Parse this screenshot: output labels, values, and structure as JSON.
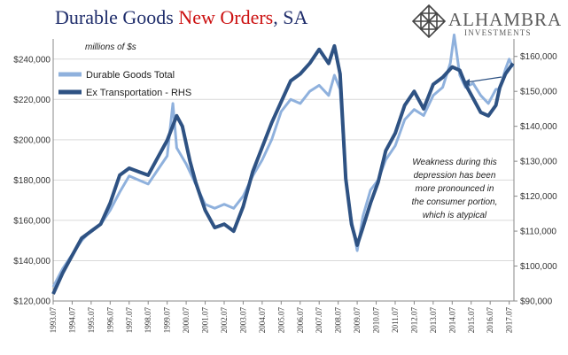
{
  "header": {
    "title_part1": "Durable Goods ",
    "title_highlight": "New Orders",
    "title_part2": ", SA"
  },
  "logo": {
    "name": "ALHAMBRA",
    "sub": "INVESTMENTS",
    "icon": "diamond-lattice-icon"
  },
  "colors": {
    "total": "#8fb1dd",
    "ex_transport": "#2e5283",
    "title_blue": "#1f2d6b",
    "title_red": "#cc1111"
  },
  "chart_data": {
    "type": "line",
    "title": "Durable Goods New Orders, SA",
    "units_label": "millions of $s",
    "annotation": [
      "Weakness during this",
      "depression has been",
      "more pronounced in",
      "the consumer portion,",
      "which is atypical"
    ],
    "y_left": {
      "min": 120000,
      "max": 250000,
      "ticks": [
        "$120,000",
        "$140,000",
        "$160,000",
        "$180,000",
        "$200,000",
        "$220,000",
        "$240,000"
      ],
      "tick_values": [
        120000,
        140000,
        160000,
        180000,
        200000,
        220000,
        240000
      ]
    },
    "y_right": {
      "min": 90000,
      "max": 165000,
      "ticks": [
        "$90,000",
        "$100,000",
        "$110,000",
        "$120,000",
        "$130,000",
        "$140,000",
        "$150,000",
        "$160,000"
      ],
      "tick_values": [
        90000,
        100000,
        110000,
        120000,
        130000,
        140000,
        150000,
        160000
      ]
    },
    "x_range": [
      1993.5,
      2017.75
    ],
    "x_ticks": [
      "1993.07",
      "1994.07",
      "1995.07",
      "1996.07",
      "1997.07",
      "1998.07",
      "1999.07",
      "2000.07",
      "2001.07",
      "2002.07",
      "2003.07",
      "2004.07",
      "2005.07",
      "2006.07",
      "2007.07",
      "2008.07",
      "2009.07",
      "2010.07",
      "2011.07",
      "2012.07",
      "2013.07",
      "2014.07",
      "2015.07",
      "2016.07",
      "2017.07"
    ],
    "series": [
      {
        "name": "Durable Goods Total",
        "axis": "left",
        "x": [
          1993.5,
          1994.0,
          1994.5,
          1995.0,
          1995.5,
          1996.0,
          1996.5,
          1997.0,
          1997.5,
          1998.0,
          1998.5,
          1999.0,
          1999.5,
          1999.8,
          2000.0,
          2000.5,
          2001.0,
          2001.5,
          2002.0,
          2002.5,
          2003.0,
          2003.5,
          2004.0,
          2004.5,
          2005.0,
          2005.5,
          2006.0,
          2006.5,
          2007.0,
          2007.5,
          2008.0,
          2008.3,
          2008.6,
          2008.9,
          2009.2,
          2009.5,
          2009.8,
          2010.2,
          2010.6,
          2011.0,
          2011.5,
          2012.0,
          2012.5,
          2013.0,
          2013.5,
          2014.0,
          2014.4,
          2014.6,
          2014.9,
          2015.2,
          2015.6,
          2016.0,
          2016.4,
          2016.8,
          2017.0,
          2017.3,
          2017.5,
          2017.7
        ],
        "values": [
          127000,
          136000,
          143000,
          150000,
          155000,
          158000,
          165000,
          174000,
          182000,
          180000,
          178000,
          185000,
          192000,
          218000,
          196000,
          188000,
          178000,
          168000,
          166000,
          168000,
          166000,
          172000,
          182000,
          190000,
          200000,
          214000,
          220000,
          218000,
          224000,
          227000,
          222000,
          232000,
          225000,
          180000,
          160000,
          145000,
          162000,
          175000,
          180000,
          190000,
          197000,
          210000,
          215000,
          212000,
          222000,
          226000,
          238000,
          252000,
          232000,
          226000,
          228000,
          222000,
          218000,
          225000,
          225000,
          235000,
          240000,
          236000
        ]
      },
      {
        "name": "Ex Transportation - RHS",
        "axis": "right",
        "x": [
          1993.5,
          1994.0,
          1994.5,
          1995.0,
          1995.5,
          1996.0,
          1996.5,
          1997.0,
          1997.5,
          1998.0,
          1998.5,
          1999.0,
          1999.5,
          2000.0,
          2000.3,
          2000.7,
          2001.0,
          2001.5,
          2002.0,
          2002.5,
          2003.0,
          2003.5,
          2004.0,
          2004.5,
          2005.0,
          2005.5,
          2006.0,
          2006.5,
          2007.0,
          2007.5,
          2008.0,
          2008.3,
          2008.6,
          2008.9,
          2009.2,
          2009.5,
          2009.8,
          2010.2,
          2010.6,
          2011.0,
          2011.5,
          2012.0,
          2012.5,
          2013.0,
          2013.5,
          2014.0,
          2014.5,
          2014.9,
          2015.2,
          2015.6,
          2016.0,
          2016.4,
          2016.8,
          2017.0,
          2017.3,
          2017.7
        ],
        "values": [
          92000,
          98000,
          103000,
          108000,
          110000,
          112000,
          118000,
          126000,
          128000,
          127000,
          126000,
          131000,
          136000,
          143000,
          140000,
          130000,
          124000,
          116000,
          111000,
          112000,
          110000,
          117000,
          127000,
          134000,
          141000,
          147000,
          153000,
          155000,
          158000,
          162000,
          158000,
          163000,
          155000,
          125000,
          112000,
          106000,
          111000,
          118000,
          124000,
          133000,
          138000,
          146000,
          150000,
          145000,
          152000,
          154000,
          157000,
          156000,
          152000,
          148000,
          144000,
          143000,
          146000,
          151000,
          155000,
          158000
        ]
      }
    ],
    "legend": [
      "Durable Goods Total",
      "Ex Transportation - RHS"
    ],
    "legend_position": "top-left",
    "grid": "horizontal"
  }
}
